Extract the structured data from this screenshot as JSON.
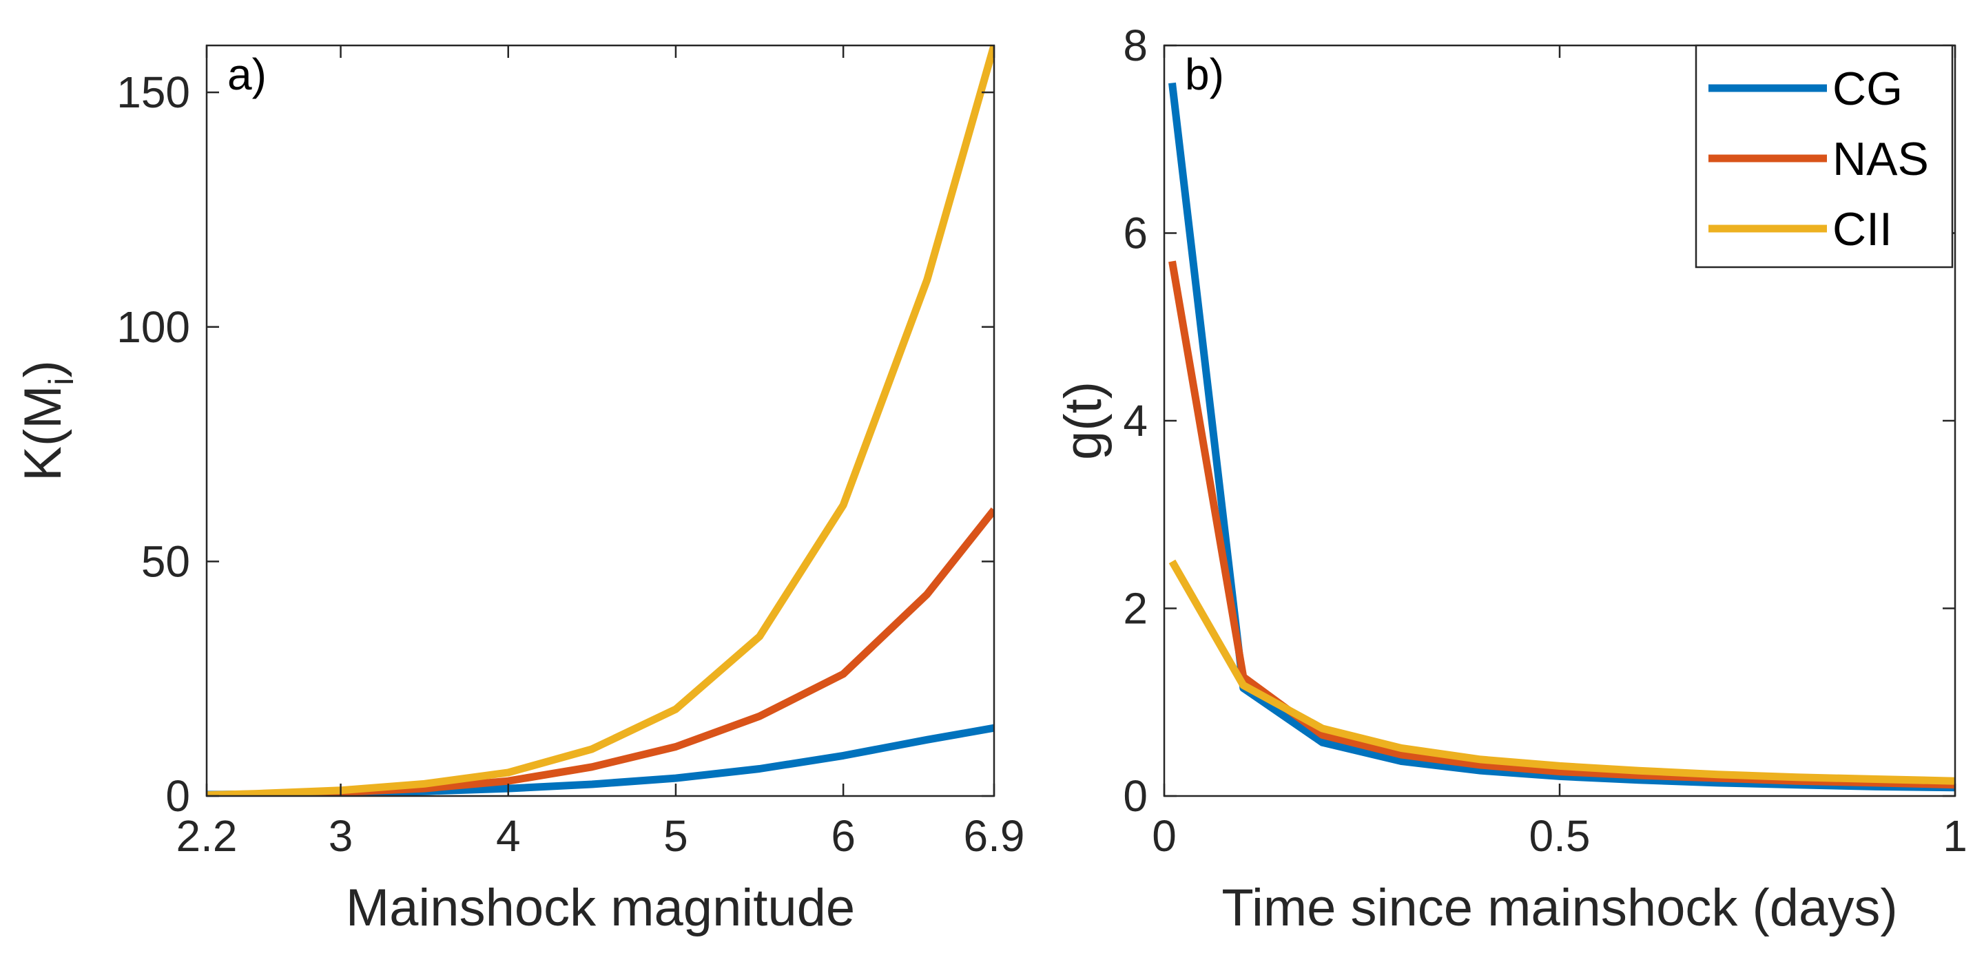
{
  "chart_data": [
    {
      "type": "line",
      "panel_label": "a)",
      "xlabel": "Mainshock magnitude",
      "ylabel": "K(M",
      "ylabel_sub": "i",
      "ylabel_close": ")",
      "xlim": [
        2.2,
        6.9
      ],
      "ylim": [
        0,
        160
      ],
      "xticks": [
        2.2,
        3,
        4,
        5,
        6,
        6.9
      ],
      "xtick_labels": [
        "2.2",
        "3",
        "4",
        "5",
        "6",
        "6.9"
      ],
      "yticks": [
        0,
        50,
        100,
        150
      ],
      "ytick_labels": [
        "0",
        "50",
        "100",
        "150"
      ],
      "x": [
        2.2,
        2.5,
        3.0,
        3.5,
        4.0,
        4.5,
        5.0,
        5.5,
        6.0,
        6.5,
        6.9
      ],
      "series": [
        {
          "name": "CG",
          "color": "#0072BD",
          "values": [
            0.3,
            0.4,
            0.6,
            1.0,
            1.6,
            2.5,
            3.8,
            5.8,
            8.6,
            12.0,
            14.5
          ]
        },
        {
          "name": "NAS",
          "color": "#D95319",
          "values": [
            0.2,
            0.4,
            0.8,
            1.6,
            3.2,
            6.2,
            10.5,
            17.0,
            26.0,
            43.0,
            61.0
          ]
        },
        {
          "name": "CII",
          "color": "#EDB120",
          "values": [
            0.2,
            0.5,
            1.2,
            2.6,
            5.0,
            10.0,
            18.5,
            34.0,
            62.0,
            110.0,
            160.0
          ]
        }
      ]
    },
    {
      "type": "line",
      "panel_label": "b)",
      "xlabel": "Time since mainshock (days)",
      "ylabel": "g(t)",
      "xlim": [
        0,
        1
      ],
      "ylim": [
        0,
        8
      ],
      "xticks": [
        0,
        0.5,
        1
      ],
      "xtick_labels": [
        "0",
        "0.5",
        "1"
      ],
      "yticks": [
        0,
        2,
        4,
        6,
        8
      ],
      "ytick_labels": [
        "0",
        "2",
        "4",
        "6",
        "8"
      ],
      "legend_position": "top-right",
      "x": [
        0.01,
        0.1,
        0.2,
        0.3,
        0.4,
        0.5,
        0.6,
        0.7,
        0.8,
        0.9,
        1.0
      ],
      "series": [
        {
          "name": "CG",
          "color": "#0072BD",
          "values": [
            7.6,
            1.15,
            0.57,
            0.37,
            0.27,
            0.21,
            0.17,
            0.14,
            0.12,
            0.1,
            0.09
          ]
        },
        {
          "name": "NAS",
          "color": "#D95319",
          "values": [
            5.7,
            1.27,
            0.65,
            0.44,
            0.33,
            0.26,
            0.22,
            0.19,
            0.16,
            0.14,
            0.12
          ]
        },
        {
          "name": "CII",
          "color": "#EDB120",
          "values": [
            2.5,
            1.18,
            0.72,
            0.51,
            0.39,
            0.32,
            0.27,
            0.23,
            0.2,
            0.18,
            0.16
          ]
        }
      ]
    }
  ]
}
